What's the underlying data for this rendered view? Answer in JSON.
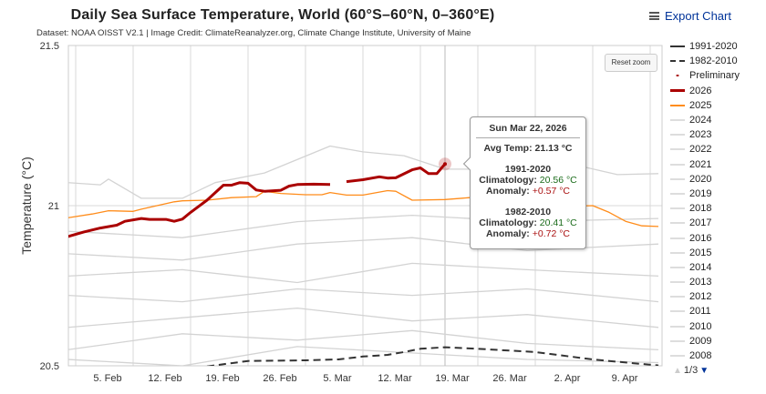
{
  "header": {
    "title": "Daily Sea Surface Temperature, World (60°S–60°N, 0–360°E)",
    "subtitle": "Dataset: NOAA OISST V2.1 | Image Credit: ClimateReanalyzer.org, Climate Change Institute, University of Maine",
    "export_label": "Export Chart",
    "menu_icon": "hamburger-icon"
  },
  "reset_zoom_label": "Reset zoom",
  "tooltip": {
    "date": "Sun Mar 22, 2026",
    "avg_label": "Avg Temp:",
    "avg_value": "21.13 °C",
    "clim1_title": "1991-2020",
    "clim1_label": "Climatology:",
    "clim1_value": "20.56 °C",
    "anom1_label": "Anomaly:",
    "anom1_value": "+0.57 °C",
    "clim2_title": "1982-2010",
    "clim2_label": "Climatology:",
    "clim2_value": "20.41 °C",
    "anom2_label": "Anomaly:",
    "anom2_value": "+0.72 °C"
  },
  "legend": {
    "items": [
      {
        "label": "1991-2020",
        "color": "#333333",
        "style": "solid"
      },
      {
        "label": "1982-2010",
        "color": "#333333",
        "style": "dashdot"
      },
      {
        "label": "Preliminary",
        "color": "#aa1111",
        "style": "dot"
      },
      {
        "label": "2026",
        "color": "#aa0000",
        "style": "thick"
      },
      {
        "label": "2025",
        "color": "#ff8c1a",
        "style": "solid"
      },
      {
        "label": "2024",
        "color": "#dddddd"
      },
      {
        "label": "2023",
        "color": "#dddddd"
      },
      {
        "label": "2022",
        "color": "#dddddd"
      },
      {
        "label": "2021",
        "color": "#dddddd"
      },
      {
        "label": "2020",
        "color": "#dddddd"
      },
      {
        "label": "2019",
        "color": "#dddddd"
      },
      {
        "label": "2018",
        "color": "#dddddd"
      },
      {
        "label": "2017",
        "color": "#dddddd"
      },
      {
        "label": "2016",
        "color": "#dddddd"
      },
      {
        "label": "2015",
        "color": "#dddddd"
      },
      {
        "label": "2014",
        "color": "#dddddd"
      },
      {
        "label": "2013",
        "color": "#dddddd"
      },
      {
        "label": "2012",
        "color": "#dddddd"
      },
      {
        "label": "2011",
        "color": "#dddddd"
      },
      {
        "label": "2010",
        "color": "#dddddd"
      },
      {
        "label": "2009",
        "color": "#dddddd"
      },
      {
        "label": "2008",
        "color": "#dddddd"
      }
    ],
    "pager": "1/3"
  },
  "chart_data": {
    "type": "line",
    "title": "Daily Sea Surface Temperature, World (60°S–60°N, 0–360°E)",
    "ylabel": "Temperature (°C)",
    "ylim": [
      20.5,
      21.5
    ],
    "yticks": [
      "21.5",
      "21",
      "20.5"
    ],
    "xlim": [
      "2026-02-04",
      "2026-04-17"
    ],
    "xticks": [
      {
        "date": "2026-02-05",
        "label": "5. Feb"
      },
      {
        "date": "2026-02-12",
        "label": "12. Feb"
      },
      {
        "date": "2026-02-19",
        "label": "19. Feb"
      },
      {
        "date": "2026-02-26",
        "label": "26. Feb"
      },
      {
        "date": "2026-03-05",
        "label": "5. Mar"
      },
      {
        "date": "2026-03-12",
        "label": "12. Mar"
      },
      {
        "date": "2026-03-19",
        "label": "19. Mar"
      },
      {
        "date": "2026-03-26",
        "label": "26. Mar"
      },
      {
        "date": "2026-04-02",
        "label": "2. Apr"
      },
      {
        "date": "2026-04-09",
        "label": "9. Apr"
      }
    ],
    "grid": true,
    "legend_position": "right",
    "series": [
      {
        "kind": "other-year",
        "color": "#d3d3d3",
        "points": [
          [
            "02-04",
            20.92
          ],
          [
            "02-18",
            20.9
          ],
          [
            "03-04",
            20.95
          ],
          [
            "03-18",
            20.97
          ],
          [
            "04-01",
            20.95
          ],
          [
            "04-17",
            20.96
          ]
        ]
      },
      {
        "kind": "other-year",
        "color": "#d3d3d3",
        "points": [
          [
            "02-04",
            20.85
          ],
          [
            "02-18",
            20.83
          ],
          [
            "03-04",
            20.88
          ],
          [
            "03-18",
            20.9
          ],
          [
            "04-01",
            20.86
          ],
          [
            "04-17",
            20.88
          ]
        ]
      },
      {
        "kind": "other-year",
        "color": "#d3d3d3",
        "points": [
          [
            "02-04",
            20.78
          ],
          [
            "02-18",
            20.8
          ],
          [
            "03-04",
            20.76
          ],
          [
            "03-18",
            20.82
          ],
          [
            "04-01",
            20.8
          ],
          [
            "04-17",
            20.78
          ]
        ]
      },
      {
        "kind": "other-year",
        "color": "#d3d3d3",
        "points": [
          [
            "02-04",
            20.72
          ],
          [
            "02-18",
            20.7
          ],
          [
            "03-04",
            20.74
          ],
          [
            "03-18",
            20.72
          ],
          [
            "04-01",
            20.74
          ],
          [
            "04-17",
            20.7
          ]
        ]
      },
      {
        "kind": "other-year",
        "color": "#d3d3d3",
        "points": [
          [
            "02-04",
            20.62
          ],
          [
            "02-18",
            20.65
          ],
          [
            "03-04",
            20.68
          ],
          [
            "03-18",
            20.64
          ],
          [
            "04-01",
            20.66
          ],
          [
            "04-17",
            20.62
          ]
        ]
      },
      {
        "kind": "other-year",
        "color": "#d3d3d3",
        "points": [
          [
            "02-04",
            20.55
          ],
          [
            "02-18",
            20.6
          ],
          [
            "03-04",
            20.58
          ],
          [
            "03-18",
            20.61
          ],
          [
            "04-01",
            20.57
          ],
          [
            "04-17",
            20.55
          ]
        ]
      },
      {
        "kind": "other-year",
        "color": "#d3d3d3",
        "points": [
          [
            "02-04",
            20.52
          ],
          [
            "02-18",
            20.5
          ],
          [
            "03-04",
            20.56
          ],
          [
            "03-18",
            20.54
          ],
          [
            "04-01",
            20.52
          ],
          [
            "04-17",
            20.51
          ]
        ]
      },
      {
        "name": "2024",
        "color": "#d3d3d3",
        "points": [
          [
            "02-04",
            21.072
          ],
          [
            "02-08",
            21.065
          ],
          [
            "02-09",
            21.083
          ],
          [
            "02-13",
            21.023
          ],
          [
            "02-18",
            21.023
          ],
          [
            "02-22",
            21.072
          ],
          [
            "02-28",
            21.102
          ],
          [
            "03-08",
            21.186
          ],
          [
            "03-12",
            21.168
          ],
          [
            "03-17",
            21.156
          ],
          [
            "03-22",
            21.114
          ],
          [
            "03-27",
            21.114
          ],
          [
            "04-06",
            21.132
          ],
          [
            "04-12",
            21.097
          ],
          [
            "04-17",
            21.1
          ]
        ]
      },
      {
        "name": "1991-2020",
        "color": "#333333",
        "dash": "8,5",
        "points": [
          [
            "02-21",
            20.498
          ],
          [
            "02-26",
            20.515
          ],
          [
            "03-05",
            20.517
          ],
          [
            "03-09",
            20.52
          ],
          [
            "03-12",
            20.529
          ],
          [
            "03-15",
            20.534
          ],
          [
            "03-17",
            20.543
          ],
          [
            "03-19",
            20.553
          ],
          [
            "03-22",
            20.558
          ],
          [
            "03-26",
            20.553
          ],
          [
            "04-02",
            20.543
          ],
          [
            "04-09",
            20.52
          ],
          [
            "04-14",
            20.508
          ],
          [
            "04-17",
            20.501
          ]
        ]
      },
      {
        "name": "2025",
        "color": "#ff8c1a",
        "points": [
          [
            "02-04",
            20.962
          ],
          [
            "02-07",
            20.974
          ],
          [
            "02-09",
            20.984
          ],
          [
            "02-12",
            20.982
          ],
          [
            "02-13",
            20.989
          ],
          [
            "02-17",
            21.012
          ],
          [
            "02-18",
            21.015
          ],
          [
            "02-21",
            21.017
          ],
          [
            "02-24",
            21.025
          ],
          [
            "02-27",
            21.028
          ],
          [
            "02-28",
            21.045
          ],
          [
            "03-02",
            21.038
          ],
          [
            "03-05",
            21.034
          ],
          [
            "03-07",
            21.034
          ],
          [
            "03-08",
            21.041
          ],
          [
            "03-10",
            21.033
          ],
          [
            "03-12",
            21.033
          ],
          [
            "03-15",
            21.047
          ],
          [
            "03-16",
            21.045
          ],
          [
            "03-18",
            21.017
          ],
          [
            "03-22",
            21.019
          ],
          [
            "03-25",
            21.025
          ],
          [
            "03-30",
            21.028
          ],
          [
            "04-06",
            20.998
          ],
          [
            "04-09",
            21.0
          ],
          [
            "04-11",
            20.979
          ],
          [
            "04-13",
            20.951
          ],
          [
            "04-15",
            20.937
          ],
          [
            "04-17",
            20.935
          ]
        ]
      },
      {
        "name": "2026",
        "color": "#aa0000",
        "width": 3,
        "points": [
          [
            "02-04",
            20.903
          ],
          [
            "02-06",
            20.918
          ],
          [
            "02-08",
            20.93
          ],
          [
            "02-10",
            20.939
          ],
          [
            "02-11",
            20.951
          ],
          [
            "02-13",
            20.96
          ],
          [
            "02-14",
            20.957
          ],
          [
            "02-16",
            20.957
          ],
          [
            "02-17",
            20.951
          ],
          [
            "02-18",
            20.958
          ],
          [
            "02-19",
            20.979
          ],
          [
            "02-21",
            21.017
          ],
          [
            "02-23",
            21.064
          ],
          [
            "02-24",
            21.064
          ],
          [
            "02-25",
            21.072
          ],
          [
            "02-26",
            21.07
          ],
          [
            "02-27",
            21.049
          ],
          [
            "02-28",
            21.045
          ],
          [
            "03-02",
            21.048
          ],
          [
            "03-03",
            21.061
          ],
          [
            "03-04",
            21.066
          ],
          [
            "03-06",
            21.067
          ],
          [
            "03-08",
            21.066
          ],
          [
            "03-09",
            null
          ],
          [
            "03-10",
            21.075
          ],
          [
            "03-12",
            21.081
          ],
          [
            "03-14",
            21.09
          ],
          [
            "03-15",
            21.086
          ],
          [
            "03-16",
            21.087
          ],
          [
            "03-18",
            21.112
          ],
          [
            "03-19",
            21.118
          ],
          [
            "03-20",
            21.1
          ],
          [
            "03-21",
            21.1
          ],
          [
            "03-22",
            21.13
          ]
        ]
      }
    ],
    "highlight": {
      "date": "03-22",
      "value": 21.13,
      "series": "Preliminary"
    }
  }
}
